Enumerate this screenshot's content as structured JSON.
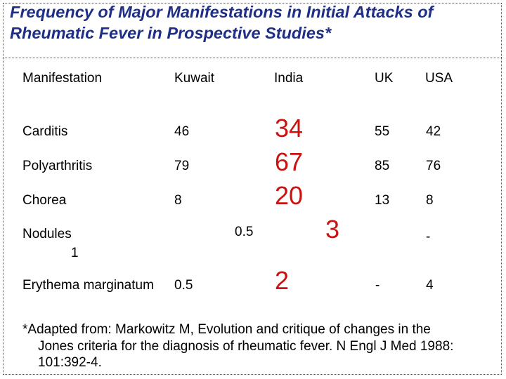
{
  "slide": {
    "title_line1": "Frequency of Major Manifestations in Initial Attacks of",
    "title_line2": "Rheumatic Fever in Prospective Studies*",
    "title_color": "#1f2f86",
    "highlight_color": "#cc1111"
  },
  "table": {
    "headers": [
      "Manifestation",
      "Kuwait",
      "India",
      "UK",
      "USA"
    ],
    "rows": [
      {
        "label": "Carditis",
        "kuwait": "46",
        "india": "34",
        "uk": "55",
        "usa": "42"
      },
      {
        "label": "Polyarthritis",
        "kuwait": "79",
        "india": "67",
        "uk": "85",
        "usa": "76"
      },
      {
        "label": "Chorea",
        "kuwait": "8",
        "india": "20",
        "uk": "13",
        "usa": "8"
      },
      {
        "label": "Nodules",
        "label_extra": "1",
        "kuwait": "0.5",
        "india": "3",
        "uk": "",
        "usa": "-"
      },
      {
        "label": "Erythema marginatum",
        "kuwait": "0.5",
        "india": "2",
        "uk": "-",
        "usa": "4"
      }
    ]
  },
  "footnote": {
    "line1": "*Adapted from: Markowitz M, Evolution and critique of changes in the",
    "line2": "Jones criteria for the diagnosis of rheumatic fever. N Engl J Med 1988:",
    "line3": "101:392-4."
  }
}
